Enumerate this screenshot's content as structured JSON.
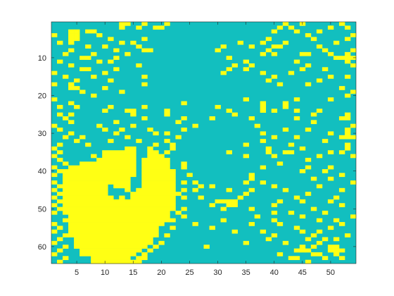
{
  "chart_data": {
    "type": "heatmap",
    "title": "",
    "xlabel": "",
    "ylabel": "",
    "n_cols": 54,
    "n_rows": 64,
    "xlim": [
      0.5,
      54.5
    ],
    "ylim": [
      0.5,
      64.5
    ],
    "y_direction": "reverse",
    "x_ticks": [
      5,
      10,
      15,
      20,
      25,
      30,
      35,
      40,
      45,
      50
    ],
    "y_ticks": [
      10,
      20,
      30,
      40,
      50,
      60
    ],
    "x_tick_labels": [
      "5",
      "10",
      "15",
      "20",
      "25",
      "30",
      "35",
      "40",
      "45",
      "50"
    ],
    "y_tick_labels": [
      "10",
      "20",
      "30",
      "40",
      "50",
      "60"
    ],
    "colormap": {
      "0": "#12BFBF",
      "1": "#FFFF14"
    },
    "background_value": 0,
    "filled_value": 1,
    "filled_row_runs": [
      [
        34,
        14,
        15
      ],
      [
        34,
        18,
        18
      ],
      [
        35,
        10,
        15
      ],
      [
        35,
        18,
        19
      ],
      [
        36,
        10,
        15
      ],
      [
        36,
        18,
        20
      ],
      [
        37,
        9,
        15
      ],
      [
        37,
        17,
        21
      ],
      [
        38,
        6,
        15
      ],
      [
        38,
        17,
        21
      ],
      [
        39,
        4,
        15
      ],
      [
        39,
        17,
        21
      ],
      [
        40,
        3,
        15
      ],
      [
        40,
        17,
        22
      ],
      [
        41,
        3,
        15
      ],
      [
        41,
        17,
        22
      ],
      [
        42,
        3,
        14
      ],
      [
        42,
        17,
        22
      ],
      [
        43,
        3,
        14
      ],
      [
        43,
        17,
        22
      ],
      [
        44,
        3,
        10
      ],
      [
        44,
        13,
        14
      ],
      [
        44,
        17,
        22
      ],
      [
        45,
        3,
        10
      ],
      [
        45,
        14,
        14
      ],
      [
        45,
        16,
        22
      ],
      [
        46,
        3,
        10
      ],
      [
        46,
        15,
        22
      ],
      [
        47,
        3,
        11
      ],
      [
        47,
        15,
        22
      ],
      [
        48,
        3,
        11
      ],
      [
        48,
        13,
        22
      ],
      [
        49,
        3,
        22
      ],
      [
        50,
        3,
        22
      ],
      [
        51,
        3,
        21
      ],
      [
        52,
        4,
        21
      ],
      [
        53,
        4,
        21
      ],
      [
        54,
        4,
        20
      ],
      [
        55,
        4,
        19
      ],
      [
        56,
        4,
        19
      ],
      [
        57,
        4,
        19
      ],
      [
        58,
        5,
        18
      ],
      [
        59,
        5,
        18
      ],
      [
        60,
        5,
        17
      ],
      [
        61,
        6,
        16
      ],
      [
        62,
        6,
        15
      ],
      [
        63,
        8,
        14
      ],
      [
        64,
        8,
        14
      ]
    ],
    "filled_cells": [
      [
        1,
        13
      ],
      [
        1,
        14
      ],
      [
        1,
        17
      ],
      [
        1,
        21
      ],
      [
        1,
        42
      ],
      [
        1,
        45
      ],
      [
        1,
        52
      ],
      [
        2,
        13
      ],
      [
        2,
        16
      ],
      [
        2,
        19
      ],
      [
        2,
        20
      ],
      [
        2,
        41
      ],
      [
        2,
        43
      ],
      [
        2,
        50
      ],
      [
        2,
        53
      ],
      [
        3,
        4
      ],
      [
        3,
        5
      ],
      [
        3,
        7
      ],
      [
        3,
        8
      ],
      [
        3,
        40
      ],
      [
        3,
        44
      ],
      [
        3,
        48
      ],
      [
        4,
        1
      ],
      [
        4,
        4
      ],
      [
        4,
        5
      ],
      [
        4,
        9
      ],
      [
        4,
        46
      ],
      [
        4,
        54
      ],
      [
        5,
        4
      ],
      [
        5,
        5
      ],
      [
        5,
        11
      ],
      [
        5,
        17
      ],
      [
        5,
        39
      ],
      [
        5,
        47
      ],
      [
        5,
        53
      ],
      [
        6,
        2
      ],
      [
        6,
        4
      ],
      [
        6,
        13
      ],
      [
        6,
        15
      ],
      [
        6,
        34
      ],
      [
        6,
        38
      ],
      [
        6,
        42
      ],
      [
        6,
        51
      ],
      [
        7,
        7
      ],
      [
        7,
        10
      ],
      [
        7,
        16
      ],
      [
        7,
        31
      ],
      [
        7,
        36
      ],
      [
        7,
        40
      ],
      [
        7,
        41
      ],
      [
        7,
        48
      ],
      [
        8,
        4
      ],
      [
        8,
        12
      ],
      [
        8,
        17
      ],
      [
        8,
        18
      ],
      [
        8,
        30
      ],
      [
        8,
        39
      ],
      [
        8,
        49
      ],
      [
        8,
        54
      ],
      [
        9,
        3
      ],
      [
        9,
        8
      ],
      [
        9,
        14
      ],
      [
        9,
        38
      ],
      [
        9,
        40
      ],
      [
        9,
        45
      ],
      [
        9,
        46
      ],
      [
        9,
        50
      ],
      [
        9,
        53
      ],
      [
        10,
        6
      ],
      [
        10,
        7
      ],
      [
        10,
        12
      ],
      [
        10,
        32
      ],
      [
        10,
        51
      ],
      [
        10,
        52
      ],
      [
        10,
        53
      ],
      [
        10,
        54
      ],
      [
        11,
        2
      ],
      [
        11,
        9
      ],
      [
        11,
        11
      ],
      [
        11,
        35
      ],
      [
        11,
        44
      ],
      [
        11,
        53
      ],
      [
        12,
        4
      ],
      [
        12,
        16
      ],
      [
        12,
        33
      ],
      [
        12,
        36
      ],
      [
        12,
        46
      ],
      [
        12,
        54
      ],
      [
        13,
        6
      ],
      [
        13,
        7
      ],
      [
        13,
        12
      ],
      [
        13,
        32
      ],
      [
        13,
        35
      ],
      [
        13,
        45
      ],
      [
        13,
        49
      ],
      [
        14,
        1
      ],
      [
        14,
        10
      ],
      [
        14,
        31
      ],
      [
        14,
        38
      ],
      [
        14,
        43
      ],
      [
        15,
        3
      ],
      [
        15,
        8
      ],
      [
        15,
        17
      ],
      [
        15,
        40
      ],
      [
        15,
        50
      ],
      [
        15,
        53
      ],
      [
        16,
        5
      ],
      [
        16,
        11
      ],
      [
        16,
        39
      ],
      [
        16,
        48
      ],
      [
        17,
        1
      ],
      [
        17,
        4
      ],
      [
        17,
        17
      ],
      [
        17,
        41
      ],
      [
        17,
        46
      ],
      [
        18,
        4
      ],
      [
        18,
        5
      ],
      [
        18,
        10
      ],
      [
        18,
        52
      ],
      [
        19,
        6
      ],
      [
        19,
        13
      ],
      [
        19,
        54
      ],
      [
        20,
        8
      ],
      [
        20,
        53
      ],
      [
        21,
        1
      ],
      [
        21,
        35
      ],
      [
        21,
        44
      ],
      [
        21,
        50
      ],
      [
        22,
        4
      ],
      [
        22,
        24
      ],
      [
        22,
        38
      ],
      [
        22,
        42
      ],
      [
        23,
        2
      ],
      [
        23,
        5
      ],
      [
        23,
        11
      ],
      [
        23,
        17
      ],
      [
        23,
        30
      ],
      [
        23,
        38
      ],
      [
        23,
        42
      ],
      [
        24,
        10
      ],
      [
        24,
        14
      ],
      [
        24,
        15
      ],
      [
        24,
        21
      ],
      [
        24,
        32
      ],
      [
        24,
        38
      ],
      [
        24,
        40
      ],
      [
        24,
        44
      ],
      [
        24,
        48
      ],
      [
        25,
        2
      ],
      [
        25,
        4
      ],
      [
        25,
        15
      ],
      [
        25,
        21
      ],
      [
        25,
        33
      ],
      [
        25,
        47
      ],
      [
        25,
        53
      ],
      [
        26,
        3
      ],
      [
        26,
        17
      ],
      [
        26,
        24
      ],
      [
        26,
        29
      ],
      [
        26,
        36
      ],
      [
        26,
        44
      ],
      [
        26,
        52
      ],
      [
        26,
        53
      ],
      [
        27,
        4
      ],
      [
        27,
        12
      ],
      [
        27,
        23
      ],
      [
        27,
        47
      ],
      [
        28,
        1
      ],
      [
        28,
        9
      ],
      [
        28,
        15
      ],
      [
        28,
        26
      ],
      [
        28,
        37
      ],
      [
        28,
        54
      ],
      [
        29,
        2
      ],
      [
        29,
        10
      ],
      [
        29,
        13
      ],
      [
        29,
        18
      ],
      [
        29,
        24
      ],
      [
        29,
        42
      ],
      [
        29,
        46
      ],
      [
        29,
        53
      ],
      [
        30,
        4
      ],
      [
        30,
        12
      ],
      [
        30,
        19
      ],
      [
        30,
        21
      ],
      [
        30,
        38
      ],
      [
        30,
        50
      ],
      [
        30,
        53
      ],
      [
        31,
        3
      ],
      [
        31,
        6
      ],
      [
        31,
        14
      ],
      [
        31,
        23
      ],
      [
        31,
        40
      ],
      [
        31,
        44
      ],
      [
        31,
        52
      ],
      [
        31,
        53
      ],
      [
        31,
        54
      ],
      [
        32,
        5
      ],
      [
        32,
        11
      ],
      [
        32,
        16
      ],
      [
        32,
        21
      ],
      [
        32,
        38
      ],
      [
        32,
        49
      ],
      [
        33,
        2
      ],
      [
        33,
        7
      ],
      [
        33,
        19
      ],
      [
        33,
        22
      ],
      [
        33,
        35
      ],
      [
        33,
        43
      ],
      [
        33,
        53
      ],
      [
        34,
        1
      ],
      [
        34,
        22
      ],
      [
        34,
        39
      ],
      [
        34,
        45
      ],
      [
        34,
        53
      ],
      [
        35,
        2
      ],
      [
        35,
        21
      ],
      [
        35,
        32
      ],
      [
        35,
        39
      ],
      [
        35,
        42
      ],
      [
        35,
        43
      ],
      [
        35,
        50
      ],
      [
        35,
        52
      ],
      [
        36,
        1
      ],
      [
        36,
        8
      ],
      [
        36,
        35
      ],
      [
        36,
        40
      ],
      [
        36,
        48
      ],
      [
        36,
        54
      ],
      [
        37,
        2
      ],
      [
        37,
        46
      ],
      [
        38,
        3
      ],
      [
        38,
        24
      ],
      [
        38,
        41
      ],
      [
        39,
        1
      ],
      [
        39,
        8
      ],
      [
        39,
        24
      ],
      [
        39,
        38
      ],
      [
        39,
        46
      ],
      [
        39,
        50
      ],
      [
        40,
        2
      ],
      [
        40,
        10
      ],
      [
        40,
        45
      ],
      [
        40,
        49
      ],
      [
        41,
        1
      ],
      [
        41,
        25
      ],
      [
        41,
        36
      ],
      [
        41,
        52
      ],
      [
        42,
        3
      ],
      [
        42,
        36
      ],
      [
        42,
        47
      ],
      [
        42,
        50
      ],
      [
        43,
        1
      ],
      [
        43,
        24
      ],
      [
        43,
        26
      ],
      [
        43,
        35
      ],
      [
        43,
        38
      ],
      [
        43,
        54
      ],
      [
        44,
        2
      ],
      [
        44,
        12
      ],
      [
        44,
        27
      ],
      [
        44,
        29
      ],
      [
        44,
        40
      ],
      [
        44,
        48
      ],
      [
        45,
        1
      ],
      [
        45,
        24
      ],
      [
        45,
        26
      ],
      [
        45,
        32
      ],
      [
        45,
        36
      ],
      [
        45,
        42
      ],
      [
        45,
        52
      ],
      [
        46,
        2
      ],
      [
        46,
        23
      ],
      [
        46,
        35
      ],
      [
        46,
        46
      ],
      [
        47,
        1
      ],
      [
        47,
        13
      ],
      [
        47,
        24
      ],
      [
        47,
        27
      ],
      [
        47,
        34
      ],
      [
        47,
        44
      ],
      [
        47,
        51
      ],
      [
        48,
        2
      ],
      [
        48,
        12
      ],
      [
        48,
        30
      ],
      [
        48,
        31
      ],
      [
        48,
        32
      ],
      [
        48,
        33
      ],
      [
        48,
        41
      ],
      [
        48,
        45
      ],
      [
        48,
        50
      ],
      [
        49,
        1
      ],
      [
        49,
        29
      ],
      [
        49,
        32
      ],
      [
        49,
        33
      ],
      [
        49,
        40
      ],
      [
        49,
        52
      ],
      [
        50,
        2
      ],
      [
        50,
        24
      ],
      [
        50,
        31
      ],
      [
        50,
        36
      ],
      [
        50,
        47
      ],
      [
        51,
        1
      ],
      [
        51,
        23
      ],
      [
        51,
        40
      ],
      [
        51,
        43
      ],
      [
        51,
        49
      ],
      [
        52,
        24
      ],
      [
        52,
        37
      ],
      [
        52,
        45
      ],
      [
        52,
        54
      ],
      [
        53,
        3
      ],
      [
        53,
        22
      ],
      [
        53,
        31
      ],
      [
        53,
        40
      ],
      [
        53,
        48
      ],
      [
        53,
        51
      ],
      [
        54,
        1
      ],
      [
        54,
        26
      ],
      [
        54,
        36
      ],
      [
        54,
        41
      ],
      [
        54,
        52
      ],
      [
        55,
        2
      ],
      [
        55,
        22
      ],
      [
        55,
        29
      ],
      [
        55,
        44
      ],
      [
        55,
        50
      ],
      [
        56,
        1
      ],
      [
        56,
        33
      ],
      [
        56,
        38
      ],
      [
        56,
        45
      ],
      [
        56,
        48
      ],
      [
        57,
        3
      ],
      [
        57,
        21
      ],
      [
        57,
        40
      ],
      [
        57,
        47
      ],
      [
        57,
        53
      ],
      [
        58,
        2
      ],
      [
        58,
        39
      ],
      [
        58,
        46
      ],
      [
        58,
        49
      ],
      [
        58,
        51
      ],
      [
        59,
        1
      ],
      [
        59,
        20
      ],
      [
        59,
        35
      ],
      [
        59,
        42
      ],
      [
        59,
        48
      ],
      [
        60,
        3
      ],
      [
        60,
        19
      ],
      [
        60,
        28
      ],
      [
        60,
        45
      ],
      [
        60,
        47
      ],
      [
        60,
        50
      ],
      [
        60,
        51
      ],
      [
        61,
        2
      ],
      [
        61,
        18
      ],
      [
        61,
        44
      ],
      [
        61,
        45
      ],
      [
        61,
        46
      ],
      [
        61,
        50
      ],
      [
        61,
        51
      ],
      [
        61,
        52
      ],
      [
        62,
        1
      ],
      [
        62,
        17
      ],
      [
        62,
        41
      ],
      [
        62,
        47
      ],
      [
        62,
        48
      ],
      [
        62,
        51
      ],
      [
        63,
        3
      ],
      [
        63,
        16
      ],
      [
        63,
        17
      ],
      [
        63,
        43
      ],
      [
        63,
        44
      ],
      [
        63,
        49
      ],
      [
        63,
        52
      ],
      [
        64,
        2
      ],
      [
        64,
        15
      ],
      [
        64,
        16
      ],
      [
        64,
        46
      ]
    ]
  }
}
